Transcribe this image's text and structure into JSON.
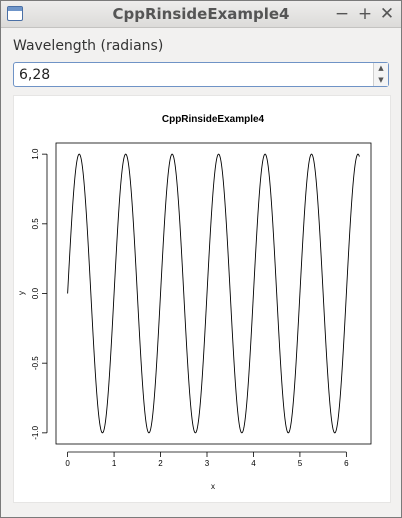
{
  "window": {
    "title": "CppRinsideExample4"
  },
  "titlebar_buttons": {
    "minimize": "−",
    "maximize": "+",
    "close": "✕"
  },
  "icons": {
    "app": "window-icon",
    "spin_up": "▲",
    "spin_down": "▼"
  },
  "form": {
    "label": "Wavelength (radians)",
    "value": "6,28"
  },
  "chart_data": {
    "type": "line",
    "title": "CppRinsideExample4",
    "xlabel": "x",
    "ylabel": "y",
    "xlim": [
      -0.25,
      6.53
    ],
    "ylim": [
      -1.08,
      1.08
    ],
    "x_ticks": [
      0,
      1,
      2,
      3,
      4,
      5,
      6
    ],
    "x_tick_labels": [
      "0",
      "1",
      "2",
      "3",
      "4",
      "5",
      "6"
    ],
    "y_ticks": [
      -1.0,
      -0.5,
      0.0,
      0.5,
      1.0
    ],
    "y_tick_labels": [
      "-1.0",
      "-0.5",
      "0.0",
      "0.5",
      "1.0"
    ],
    "grid": false,
    "series": [
      {
        "function": "y = sin(2*pi*x)",
        "x_range": [
          0,
          6.28
        ],
        "line_color": "#000000"
      }
    ]
  }
}
